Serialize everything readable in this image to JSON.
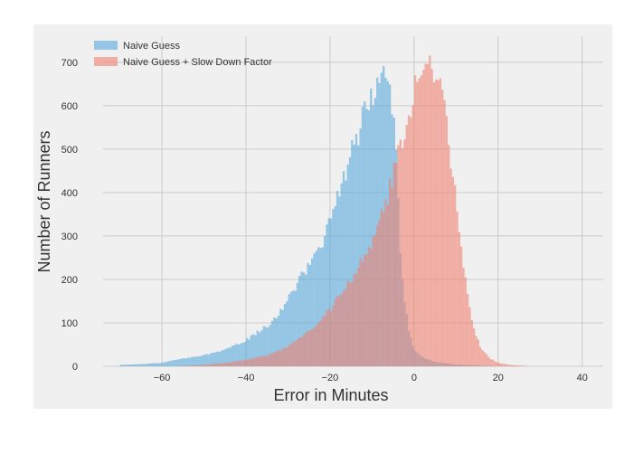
{
  "chart_data": {
    "type": "bar",
    "title": "",
    "xlabel": "Error in Minutes",
    "ylabel": "Number of Runners",
    "xlim": [
      -74,
      45
    ],
    "ylim": [
      0,
      760
    ],
    "xticks": [
      -60,
      -40,
      -20,
      0,
      20,
      40
    ],
    "yticks": [
      0,
      100,
      200,
      300,
      400,
      500,
      600,
      700
    ],
    "xtick_labels": [
      "−60",
      "−40",
      "−20",
      "0",
      "20",
      "40"
    ],
    "ytick_labels": [
      "0",
      "100",
      "200",
      "300",
      "400",
      "500",
      "600",
      "700"
    ],
    "grid": true,
    "legend_position": "top-left",
    "bin_width": 0.5,
    "series": [
      {
        "name": "Naive Guess",
        "color": "#56a9dc",
        "opacity": 0.6,
        "points": [
          [
            -70,
            3
          ],
          [
            -65,
            5
          ],
          [
            -60,
            8
          ],
          [
            -55,
            18
          ],
          [
            -50,
            25
          ],
          [
            -45,
            38
          ],
          [
            -40,
            60
          ],
          [
            -37,
            80
          ],
          [
            -34,
            100
          ],
          [
            -31,
            140
          ],
          [
            -28,
            185
          ],
          [
            -25,
            235
          ],
          [
            -22,
            285
          ],
          [
            -20,
            330
          ],
          [
            -18,
            390
          ],
          [
            -16,
            460
          ],
          [
            -14,
            520
          ],
          [
            -12,
            575
          ],
          [
            -10,
            625
          ],
          [
            -9,
            650
          ],
          [
            -8,
            665
          ],
          [
            -7,
            670
          ],
          [
            -6,
            640
          ],
          [
            -5,
            590
          ],
          [
            -4.5,
            530
          ],
          [
            -4,
            420
          ],
          [
            -3.5,
            320
          ],
          [
            -3,
            230
          ],
          [
            -2,
            130
          ],
          [
            -1,
            70
          ],
          [
            0,
            40
          ],
          [
            2,
            20
          ],
          [
            5,
            10
          ],
          [
            10,
            4
          ],
          [
            15,
            2
          ],
          [
            20,
            0
          ]
        ]
      },
      {
        "name": "Naive Guess + Slow Down Factor",
        "color": "#f08070",
        "opacity": 0.6,
        "points": [
          [
            -55,
            1
          ],
          [
            -50,
            3
          ],
          [
            -45,
            8
          ],
          [
            -40,
            15
          ],
          [
            -35,
            25
          ],
          [
            -30,
            45
          ],
          [
            -25,
            80
          ],
          [
            -20,
            130
          ],
          [
            -15,
            200
          ],
          [
            -10,
            290
          ],
          [
            -7,
            360
          ],
          [
            -5,
            440
          ],
          [
            -4,
            480
          ],
          [
            -3,
            520
          ],
          [
            -2,
            560
          ],
          [
            -1,
            600
          ],
          [
            0,
            630
          ],
          [
            1,
            660
          ],
          [
            2,
            680
          ],
          [
            3,
            690
          ],
          [
            4,
            695
          ],
          [
            5,
            680
          ],
          [
            6,
            655
          ],
          [
            7,
            610
          ],
          [
            8,
            540
          ],
          [
            9,
            460
          ],
          [
            10,
            380
          ],
          [
            11,
            290
          ],
          [
            12,
            210
          ],
          [
            13,
            150
          ],
          [
            14,
            100
          ],
          [
            15,
            65
          ],
          [
            16,
            40
          ],
          [
            18,
            18
          ],
          [
            20,
            8
          ],
          [
            23,
            3
          ],
          [
            28,
            0
          ]
        ]
      }
    ]
  }
}
